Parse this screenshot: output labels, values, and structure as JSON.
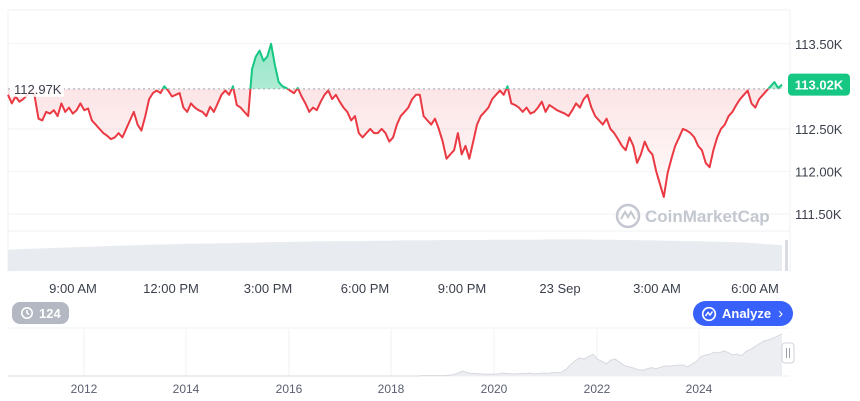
{
  "chart_data": {
    "type": "line",
    "baseline": {
      "value": 112970,
      "label": "112.97K"
    },
    "current": {
      "value": 113020,
      "label": "113.02K"
    },
    "y_ticks": [
      {
        "value": 113500,
        "label": "113.50K"
      },
      {
        "value": 113000,
        "label": "113.02K",
        "is_price": true
      },
      {
        "value": 112500,
        "label": "112.50K"
      },
      {
        "value": 112000,
        "label": "112.00K"
      },
      {
        "value": 111500,
        "label": "111.50K"
      }
    ],
    "ylim": [
      111300,
      113850
    ],
    "x_ticks": [
      "9:00 AM",
      "12:00 PM",
      "3:00 PM",
      "6:00 PM",
      "9:00 PM",
      "23 Sep",
      "3:00 AM",
      "6:00 AM"
    ],
    "series": [
      {
        "values": [
          112900,
          112800,
          112880,
          112820,
          112850,
          112900,
          112950,
          112880,
          112620,
          112600,
          112700,
          112680,
          112720,
          112650,
          112800,
          112700,
          112750,
          112680,
          112720,
          112800,
          112720,
          112740,
          112600,
          112550,
          112500,
          112450,
          112420,
          112380,
          112400,
          112450,
          112400,
          112500,
          112600,
          112700,
          112550,
          112480,
          112650,
          112850,
          112920,
          112950,
          112920,
          113000,
          112950,
          112880,
          112900,
          112920,
          112750,
          112700,
          112800,
          112750,
          112720,
          112700,
          112650,
          112760,
          112700,
          112800,
          112900,
          112950,
          112900,
          113000,
          112780,
          112750,
          112700,
          112650,
          113200,
          113350,
          113420,
          113300,
          113350,
          113500,
          113250,
          113050,
          113000,
          112980,
          112950,
          112920,
          112980,
          112880,
          112800,
          112700,
          112750,
          112720,
          112820,
          112900,
          112950,
          112850,
          112900,
          112820,
          112750,
          112700,
          112600,
          112650,
          112450,
          112400,
          112450,
          112500,
          112450,
          112450,
          112500,
          112450,
          112350,
          112400,
          112550,
          112650,
          112700,
          112750,
          112850,
          112900,
          112900,
          112650,
          112600,
          112550,
          112620,
          112500,
          112350,
          112150,
          112200,
          112250,
          112450,
          112200,
          112300,
          112150,
          112350,
          112550,
          112650,
          112700,
          112750,
          112850,
          112900,
          112950,
          112900,
          113000,
          112800,
          112780,
          112750,
          112700,
          112750,
          112680,
          112700,
          112750,
          112820,
          112700,
          112780,
          112750,
          112720,
          112700,
          112680,
          112650,
          112720,
          112800,
          112750,
          112850,
          112900,
          112750,
          112650,
          112600,
          112550,
          112620,
          112500,
          112450,
          112380,
          112300,
          112250,
          112400,
          112300,
          112100,
          112200,
          112350,
          112250,
          112200,
          112000,
          111850,
          111700,
          111980,
          112150,
          112300,
          112400,
          112500,
          112480,
          112450,
          112400,
          112300,
          112250,
          112100,
          112050,
          112250,
          112400,
          112500,
          112550,
          112650,
          112700,
          112780,
          112850,
          112900,
          112950,
          112800,
          112750,
          112850,
          112900,
          112950,
          113000,
          113050,
          112980,
          113020
        ]
      }
    ],
    "volume": {
      "values": [
        0.62,
        0.64,
        0.65,
        0.66,
        0.67,
        0.68,
        0.69,
        0.7,
        0.71,
        0.72,
        0.73,
        0.74,
        0.75,
        0.76,
        0.77,
        0.78,
        0.78,
        0.79,
        0.8,
        0.8,
        0.81,
        0.81,
        0.82,
        0.82,
        0.83,
        0.83,
        0.84,
        0.85,
        0.85,
        0.86,
        0.86,
        0.87,
        0.87,
        0.87,
        0.88,
        0.88,
        0.88,
        0.89,
        0.89,
        0.89,
        0.9,
        0.9,
        0.9,
        0.9,
        0.91,
        0.91,
        0.91,
        0.91,
        0.91,
        0.92,
        0.92,
        0.92,
        0.92,
        0.92,
        0.92,
        0.93,
        0.93,
        0.93,
        0.93,
        0.93,
        0.92,
        0.92,
        0.92,
        0.91,
        0.91,
        0.9,
        0.9,
        0.89,
        0.89,
        0.88,
        0.88,
        0.87,
        0.86,
        0.86,
        0.85,
        0.84,
        0.82,
        0.8,
        0.78,
        0.76
      ]
    },
    "history": {
      "x_ticks": [
        "2012",
        "2014",
        "2016",
        "2018",
        "2020",
        "2022",
        "2024"
      ],
      "values": [
        0,
        0,
        0,
        0,
        0,
        0,
        0,
        0,
        0,
        0,
        0,
        0,
        0,
        0,
        0,
        0,
        0,
        0,
        0,
        0,
        0,
        0,
        0,
        0,
        0,
        0,
        0,
        0,
        0,
        0,
        0,
        0,
        0,
        0,
        0,
        0,
        0,
        0,
        0,
        0,
        0,
        0,
        0,
        0,
        0,
        0,
        0,
        0,
        0,
        0,
        0,
        0,
        0,
        0,
        0,
        0,
        0,
        0,
        0,
        0,
        0,
        0,
        0,
        0,
        0,
        0,
        0,
        0,
        0,
        0,
        0,
        0,
        0,
        0,
        0,
        0,
        0,
        0,
        0,
        0,
        0,
        0,
        0,
        0,
        0,
        0,
        0,
        0,
        0,
        0,
        0,
        0,
        0.01,
        0.01,
        0.01,
        0.01,
        0.01,
        0.01,
        0.02,
        0.03,
        0.07,
        0.12,
        0.08,
        0.06,
        0.06,
        0.05,
        0.04,
        0.04,
        0.04,
        0.05,
        0.07,
        0.06,
        0.05,
        0.05,
        0.06,
        0.06,
        0.07,
        0.05,
        0.06,
        0.07,
        0.06,
        0.08,
        0.08,
        0.09,
        0.16,
        0.27,
        0.36,
        0.43,
        0.4,
        0.46,
        0.52,
        0.4,
        0.35,
        0.29,
        0.38,
        0.4,
        0.32,
        0.25,
        0.22,
        0.19,
        0.15,
        0.14,
        0.17,
        0.2,
        0.17,
        0.21,
        0.24,
        0.23,
        0.25,
        0.26,
        0.26,
        0.22,
        0.28,
        0.35,
        0.46,
        0.5,
        0.52,
        0.57,
        0.55,
        0.6,
        0.56,
        0.5,
        0.52,
        0.48,
        0.58,
        0.63,
        0.7,
        0.77,
        0.83,
        0.86,
        0.9,
        0.95,
        1.0
      ]
    }
  },
  "ui": {
    "refresh_count": "124",
    "analyze_label": "Analyze",
    "watermark": "CoinMarketCap"
  },
  "colors": {
    "up": "#16c784",
    "down": "#ea3943",
    "baseline": "#a0a6b1",
    "volume": "#e8ebef",
    "analyze_bg": "#3861fb",
    "history_line": "#d6d9de",
    "history_fill": "#eceef2"
  }
}
